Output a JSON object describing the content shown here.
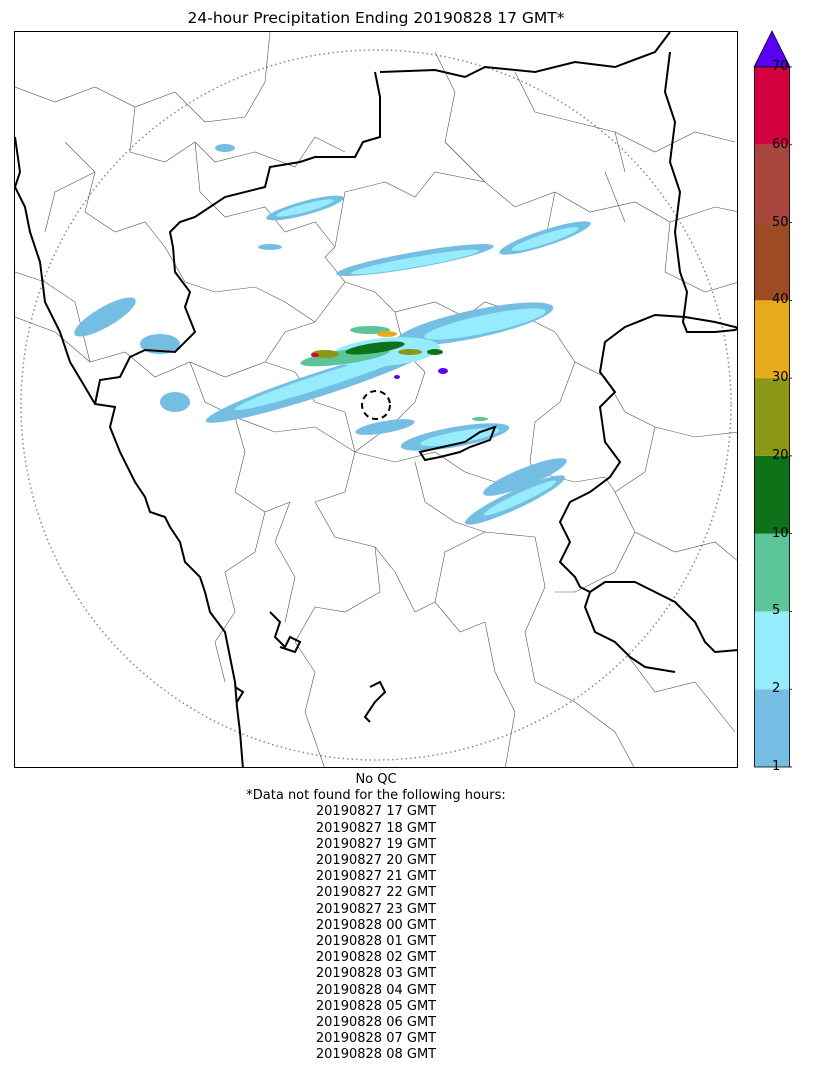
{
  "title": "24-hour Precipitation Ending 20190828 17 GMT*",
  "colorbar": {
    "bounds": [
      1,
      2,
      5,
      10,
      20,
      30,
      40,
      50,
      60,
      70
    ],
    "tick_labels": [
      "1",
      "2",
      "5",
      "10",
      "20",
      "30",
      "40",
      "50",
      "60",
      "70"
    ],
    "colors": [
      "#74bde3",
      "#96ecfc",
      "#5cc499",
      "#0e7218",
      "#8a9816",
      "#e7ab1b",
      "#9c4b24",
      "#a8463e",
      "#d5003f"
    ],
    "extend_color": "#5a00f2"
  },
  "notes": {
    "qc": "No QC",
    "missing_header": "*Data not found for the following hours:",
    "missing_hours": [
      "20190827 17 GMT",
      "20190827 18 GMT",
      "20190827 19 GMT",
      "20190827 20 GMT",
      "20190827 21 GMT",
      "20190827 22 GMT",
      "20190827 23 GMT",
      "20190828 00 GMT",
      "20190828 01 GMT",
      "20190828 02 GMT",
      "20190828 03 GMT",
      "20190828 04 GMT",
      "20190828 05 GMT",
      "20190828 06 GMT",
      "20190828 07 GMT",
      "20190828 08 GMT"
    ]
  }
}
